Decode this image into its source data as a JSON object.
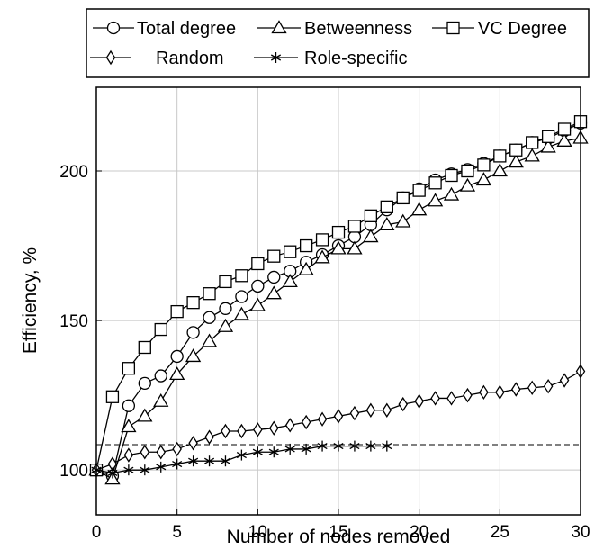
{
  "chart_data": {
    "type": "line",
    "xlabel": "Number of nodes removed",
    "ylabel": "Efficiency, %",
    "xlim": [
      0,
      30
    ],
    "ylim": [
      85,
      228
    ],
    "x_ticks": [
      "0",
      "5",
      "10",
      "15",
      "20",
      "25",
      "30"
    ],
    "y_ticks": [
      "100",
      "150",
      "200"
    ],
    "grid": true,
    "legend_position": "top",
    "reference_line": {
      "y": 100,
      "style": "dashed"
    },
    "series": [
      {
        "name": "Total degree",
        "marker": "circle",
        "x": [
          0,
          1,
          2,
          3,
          4,
          5,
          6,
          7,
          8,
          9,
          10,
          11,
          12,
          13,
          14,
          15,
          16,
          17,
          18,
          19,
          20,
          21,
          22,
          23,
          24,
          25,
          26,
          27,
          28,
          29,
          30
        ],
        "y": [
          100,
          98,
          121.5,
          129,
          131.5,
          138,
          146,
          151,
          154,
          158,
          161.5,
          164.5,
          166.5,
          169.5,
          172,
          175,
          178,
          182,
          187,
          191,
          194,
          197,
          199,
          200.5,
          202.5,
          205,
          207,
          209.5,
          211,
          213.5,
          216
        ]
      },
      {
        "name": "Betweenness",
        "marker": "triangle",
        "x": [
          0,
          1,
          2,
          3,
          4,
          5,
          6,
          7,
          8,
          9,
          10,
          11,
          12,
          13,
          14,
          15,
          16,
          17,
          18,
          19,
          20,
          21,
          22,
          23,
          24,
          25,
          26,
          27,
          28,
          29,
          30
        ],
        "y": [
          100,
          97,
          114.5,
          118,
          123,
          132,
          138,
          143,
          148,
          152,
          155,
          159,
          163,
          167,
          171,
          174,
          174,
          178,
          182,
          183,
          187,
          190,
          192,
          195,
          197,
          200,
          203,
          205,
          208,
          210,
          211
        ]
      },
      {
        "name": "VC Degree",
        "marker": "square",
        "x": [
          0,
          1,
          2,
          3,
          4,
          5,
          6,
          7,
          8,
          9,
          10,
          11,
          12,
          13,
          14,
          15,
          16,
          17,
          18,
          19,
          20,
          21,
          22,
          23,
          24,
          25,
          26,
          27,
          28,
          29,
          30
        ],
        "y": [
          100,
          124.5,
          134,
          141,
          147,
          153,
          156,
          159,
          163,
          165,
          169,
          171.5,
          173,
          175,
          177,
          179.5,
          181.5,
          185,
          188,
          191,
          193.5,
          196,
          198.5,
          200,
          202,
          205,
          207,
          209.5,
          211.5,
          214,
          216.5
        ]
      },
      {
        "name": "Random",
        "marker": "diamond",
        "x": [
          0,
          1,
          2,
          3,
          4,
          5,
          6,
          7,
          8,
          9,
          10,
          11,
          12,
          13,
          14,
          15,
          16,
          17,
          18,
          19,
          20,
          21,
          22,
          23,
          24,
          25,
          26,
          27,
          28,
          29,
          30
        ],
        "y": [
          100,
          102,
          105,
          106,
          106,
          107,
          109,
          111,
          113,
          113,
          113.5,
          114,
          115,
          116,
          117,
          118,
          119,
          120,
          120,
          122,
          123,
          124,
          124,
          125,
          126,
          126,
          127,
          127.5,
          128,
          130,
          133
        ]
      },
      {
        "name": "Role-specific",
        "marker": "asterisk",
        "x": [
          0,
          1,
          2,
          3,
          4,
          5,
          6,
          7,
          8,
          9,
          10,
          11,
          12,
          13,
          14,
          15,
          16,
          17,
          18
        ],
        "y": [
          100,
          99,
          100,
          100,
          101,
          102,
          103,
          103,
          103,
          105,
          106,
          106,
          107,
          107,
          108,
          108,
          108,
          108,
          108
        ]
      }
    ]
  }
}
